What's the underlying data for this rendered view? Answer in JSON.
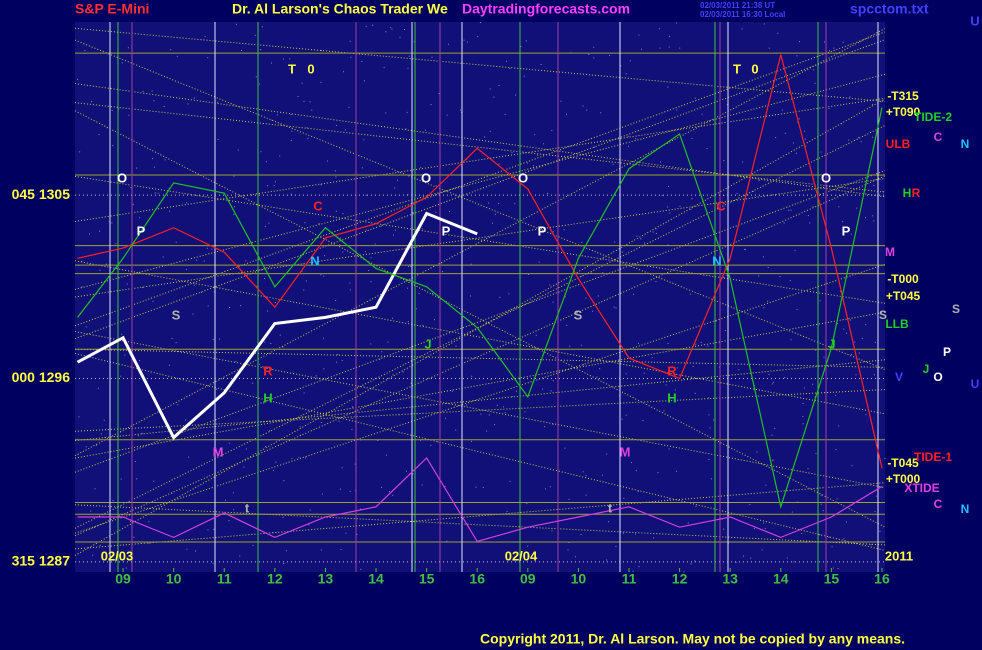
{
  "header": {
    "market": "S&P E-Mini",
    "title": "Dr. Al Larson's Chaos Trader We",
    "site": "Daytradingforecasts.com",
    "timestamp_ut": "02/03/2011 21:38 UT",
    "timestamp_local": "02/03/2011 16:30 Local",
    "file": "spcctom.txt"
  },
  "footer": {
    "copyright": "Copyright 2011, Dr. Al Larson. May not be copied by any means."
  },
  "chart_data": {
    "type": "line",
    "x": [
      -0.9,
      0,
      1,
      2,
      3,
      4,
      5,
      6,
      7,
      8,
      9,
      10,
      11,
      12,
      13,
      14,
      15
    ],
    "xlim": [
      -0.95,
      15.06
    ],
    "xticks": [
      {
        "value": 0,
        "label": "09"
      },
      {
        "value": 1,
        "label": "10"
      },
      {
        "value": 2,
        "label": "11"
      },
      {
        "value": 3,
        "label": "12"
      },
      {
        "value": 4,
        "label": "13"
      },
      {
        "value": 5,
        "label": "14"
      },
      {
        "value": 6,
        "label": "15"
      },
      {
        "value": 7,
        "label": "16"
      },
      {
        "value": 8,
        "label": "09"
      },
      {
        "value": 9,
        "label": "10"
      },
      {
        "value": 10,
        "label": "11"
      },
      {
        "value": 11,
        "label": "12"
      },
      {
        "value": 12,
        "label": "13"
      },
      {
        "value": 13,
        "label": "14"
      },
      {
        "value": 14,
        "label": "15"
      },
      {
        "value": 15,
        "label": "16"
      }
    ],
    "ylim": [
      1286.5,
      1313.5
    ],
    "yticks": [
      {
        "value": 1305,
        "label": "045 1305"
      },
      {
        "value": 1296,
        "label": "000 1296"
      },
      {
        "value": 1287,
        "label": "315 1287"
      }
    ],
    "grid": true,
    "series": [
      {
        "name": "price",
        "color": "#ffffff",
        "values": [
          1296.8,
          1298.0,
          1293.1,
          1295.3,
          1298.7,
          1299.0,
          1299.5,
          1304.1,
          1303.1,
          null,
          null,
          null,
          null,
          null,
          null,
          null,
          null
        ]
      },
      {
        "name": "red flow",
        "color": "#ff2020",
        "values": [
          1301.9,
          1302.4,
          1303.4,
          1302.2,
          1299.5,
          1302.9,
          1303.6,
          1304.9,
          1307.3,
          1305.3,
          1300.9,
          1297.0,
          1296.0,
          1301.9,
          1311.9,
          1302.4,
          1291.6
        ]
      },
      {
        "name": "green flow",
        "color": "#20c020",
        "values": [
          1299.0,
          1301.9,
          1305.6,
          1305.1,
          1300.5,
          1303.4,
          1301.4,
          1300.5,
          1298.5,
          1295.1,
          1301.9,
          1306.3,
          1308.0,
          1300.9,
          1289.7,
          1297.5,
          1309.3
        ]
      },
      {
        "name": "xtide",
        "color": "#d040e0",
        "values": [
          1289.2,
          1289.2,
          1288.2,
          1289.4,
          1288.2,
          1289.2,
          1289.7,
          1292.1,
          1288.0,
          1288.7,
          1289.2,
          1289.7,
          1288.7,
          1289.2,
          1288.2,
          1289.2,
          1290.7
        ]
      }
    ],
    "labels": [
      "T",
      "0",
      "O",
      "P",
      "S",
      "R",
      "H",
      "M",
      "C",
      "N",
      "t",
      "O",
      "P",
      "J",
      "O",
      "P",
      "S",
      "R",
      "H",
      "M",
      "t",
      "T",
      "0",
      "C",
      "N",
      "O",
      "P",
      "J",
      "02/03",
      "02/04",
      "2011",
      "-T315",
      "+T090",
      "TIDE-2",
      "ULB",
      "C",
      "N",
      "H",
      "R",
      "M",
      "-T000",
      "+T045",
      "S",
      "S",
      "LLB",
      "P",
      "J",
      "O",
      "U",
      "V",
      "-T045",
      "TIDE-1",
      "+T000",
      "XTIDE",
      "C",
      "N",
      "U"
    ]
  }
}
